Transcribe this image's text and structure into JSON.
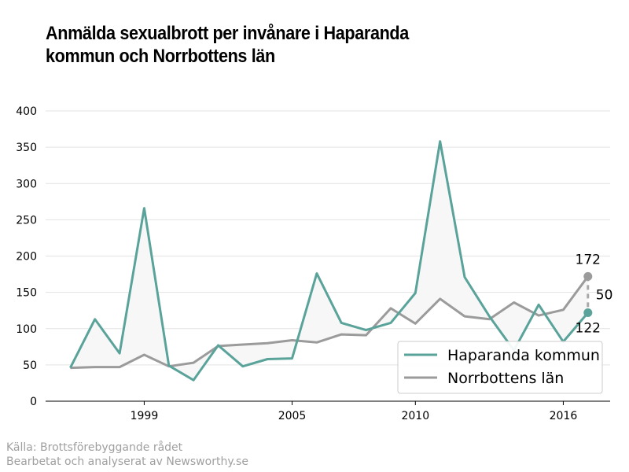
{
  "chart_data": {
    "type": "line",
    "title_lines": [
      "Anmälda sexualbrott per invånare i Haparanda",
      "kommun och Norrbottens län"
    ],
    "xlabel": "",
    "ylabel": "",
    "x": [
      1996,
      1997,
      1998,
      1999,
      2000,
      2001,
      2002,
      2003,
      2004,
      2005,
      2006,
      2007,
      2008,
      2009,
      2010,
      2011,
      2012,
      2013,
      2014,
      2015,
      2016,
      2017
    ],
    "xlim": [
      1995,
      2017.9
    ],
    "ylim": [
      0,
      400
    ],
    "xticks": [
      1999,
      2005,
      2010,
      2016
    ],
    "yticks": [
      0,
      50,
      100,
      150,
      200,
      250,
      300,
      350,
      400
    ],
    "grid": "horizontal",
    "legend_position": "bottom-right",
    "series": [
      {
        "name": "Haparanda kommun",
        "color": "#5aa39a",
        "values": [
          46,
          113,
          66,
          266,
          49,
          29,
          77,
          48,
          58,
          59,
          176,
          108,
          98,
          108,
          149,
          358,
          171,
          117,
          70,
          133,
          82,
          122
        ]
      },
      {
        "name": "Norrbottens län",
        "color": "#9b9b9b",
        "values": [
          46,
          47,
          47,
          64,
          48,
          53,
          76,
          78,
          80,
          84,
          81,
          92,
          91,
          128,
          107,
          141,
          117,
          113,
          136,
          118,
          126,
          172
        ]
      }
    ],
    "fill_color": "#f7f7f7",
    "annotations": {
      "upper_value": "172",
      "lower_value": "122",
      "difference": "50"
    }
  },
  "source": {
    "line1": "Källa: Brottsförebyggande rådet",
    "line2": "Bearbetat och analyserat av Newsworthy.se"
  }
}
